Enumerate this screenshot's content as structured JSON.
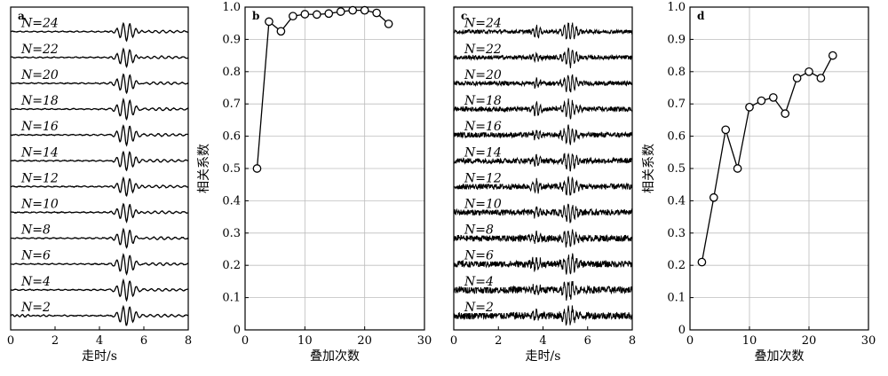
{
  "chart_data": [
    {
      "panel": "a",
      "type": "line",
      "xlabel": "走时/s",
      "ylabel": "",
      "xlim": [
        0,
        8
      ],
      "x_ticks": [
        "0",
        "2",
        "4",
        "6",
        "8"
      ],
      "trace_labels": [
        "N=24",
        "N=22",
        "N=20",
        "N=18",
        "N=16",
        "N=14",
        "N=12",
        "N=10",
        "N=8",
        "N=6",
        "N=4",
        "N=2"
      ],
      "signal_center_s": 5.2,
      "grid": false
    },
    {
      "panel": "b",
      "type": "line",
      "xlabel": "叠加次数",
      "ylabel": "相关系数",
      "xlim": [
        0,
        30
      ],
      "ylim": [
        0,
        1.0
      ],
      "x_ticks": [
        "0",
        "10",
        "20",
        "30"
      ],
      "y_ticks": [
        "0",
        "0.1",
        "0.2",
        "0.3",
        "0.4",
        "0.5",
        "0.6",
        "0.7",
        "0.8",
        "0.9",
        "1.0"
      ],
      "x": [
        2,
        4,
        6,
        8,
        10,
        12,
        14,
        16,
        18,
        20,
        22,
        24
      ],
      "y": [
        0.5,
        0.955,
        0.925,
        0.972,
        0.978,
        0.977,
        0.98,
        0.986,
        0.99,
        0.99,
        0.982,
        0.948
      ],
      "marker": "open-circle",
      "grid": true
    },
    {
      "panel": "c",
      "type": "line",
      "xlabel": "走时/s",
      "ylabel": "",
      "xlim": [
        0,
        8
      ],
      "x_ticks": [
        "0",
        "2",
        "4",
        "6",
        "8"
      ],
      "trace_labels": [
        "N=24",
        "N=22",
        "N=20",
        "N=18",
        "N=16",
        "N=14",
        "N=12",
        "N=10",
        "N=8",
        "N=6",
        "N=4",
        "N=2"
      ],
      "signal_center_s": 5.2,
      "secondary_event_s": 3.7,
      "grid": false
    },
    {
      "panel": "d",
      "type": "line",
      "xlabel": "叠加次数",
      "ylabel": "相关系数",
      "xlim": [
        0,
        30
      ],
      "ylim": [
        0,
        1.0
      ],
      "x_ticks": [
        "0",
        "10",
        "20",
        "30"
      ],
      "y_ticks": [
        "0",
        "0.1",
        "0.2",
        "0.3",
        "0.4",
        "0.5",
        "0.6",
        "0.7",
        "0.8",
        "0.9",
        "1.0"
      ],
      "x": [
        2,
        4,
        6,
        8,
        10,
        12,
        14,
        16,
        18,
        20,
        22,
        24
      ],
      "y": [
        0.21,
        0.41,
        0.62,
        0.5,
        0.69,
        0.71,
        0.72,
        0.67,
        0.78,
        0.8,
        0.78,
        0.85
      ],
      "marker": "open-circle",
      "grid": true
    }
  ]
}
